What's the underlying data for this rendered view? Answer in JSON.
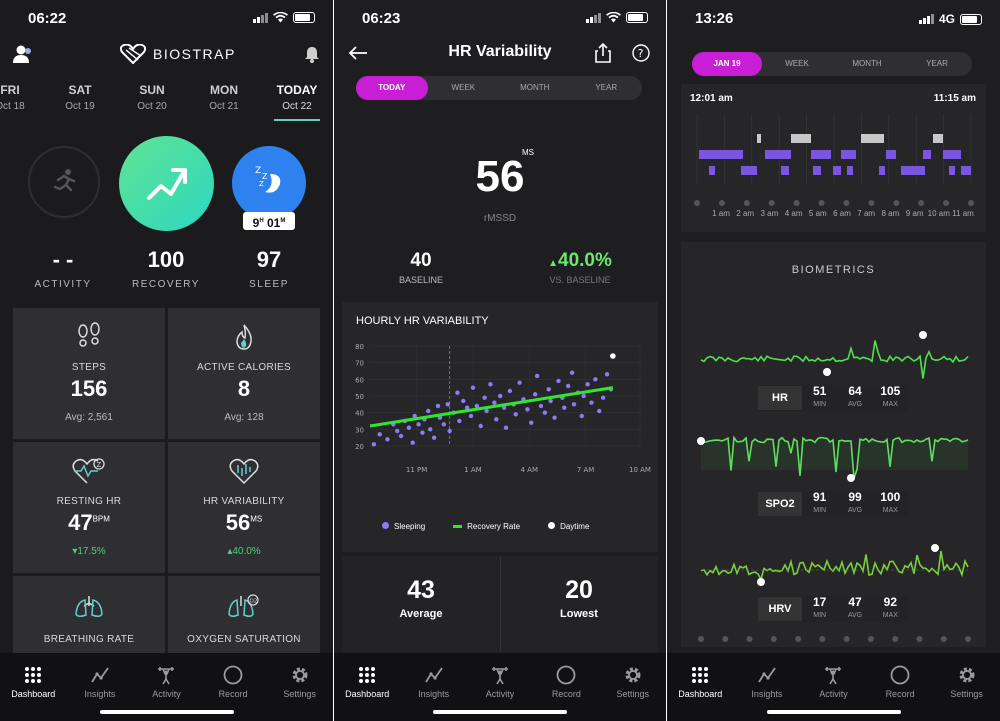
{
  "phone1": {
    "status_time": "06:22",
    "brand": "BIOSTRAP",
    "days": [
      {
        "day": "FRI",
        "date": "Oct 18"
      },
      {
        "day": "SAT",
        "date": "Oct 19"
      },
      {
        "day": "SUN",
        "date": "Oct 20"
      },
      {
        "day": "MON",
        "date": "Oct 21"
      },
      {
        "day": "TODAY",
        "date": "Oct 22"
      }
    ],
    "sleep_duration": {
      "h": "9",
      "h_unit": "H",
      "m": "01",
      "m_unit": "M"
    },
    "summary": [
      {
        "value": "- -",
        "label": "ACTIVITY"
      },
      {
        "value": "100",
        "label": "RECOVERY"
      },
      {
        "value": "97",
        "label": "SLEEP"
      }
    ],
    "tiles": [
      {
        "label": "STEPS",
        "value": "156",
        "sub": "Avg: 2,561"
      },
      {
        "label": "ACTIVE CALORIES",
        "value": "8",
        "sub": "Avg: 128"
      },
      {
        "label": "RESTING HR",
        "value": "47",
        "unit": "BPM",
        "sub": "▾17.5%"
      },
      {
        "label": "HR VARIABILITY",
        "value": "56",
        "unit": "MS",
        "sub": "▴40.0%"
      },
      {
        "label": "BREATHING RATE"
      },
      {
        "label": "OXYGEN SATURATION"
      }
    ],
    "colors": {
      "green": "#4ad27a",
      "teal": "#2fd6b5",
      "blue": "#2e82f0"
    }
  },
  "phone2": {
    "status_time": "06:23",
    "title": "HR Variability",
    "segments": [
      "TODAY",
      "WEEK",
      "MONTH",
      "YEAR"
    ],
    "metric_value": "56",
    "metric_unit": "MS",
    "metric_label": "rMSSD",
    "baseline_value": "40",
    "baseline_label": "BASELINE",
    "vs_value": "40.0%",
    "vs_label": "VS. BASELINE",
    "chart_title": "HOURLY HR VARIABILITY",
    "legend": [
      "Sleeping",
      "Recovery Rate",
      "Daytime"
    ],
    "average_value": "43",
    "average_label": "Average",
    "lowest_value": "20",
    "lowest_label": "Lowest"
  },
  "phone3": {
    "status_time": "13:26",
    "network": "4G",
    "segments": [
      "JAN 19",
      "WEEK",
      "MONTH",
      "YEAR"
    ],
    "time_start": "12:01 am",
    "time_end": "11:15 am",
    "hour_labels": [
      "1 am",
      "2 am",
      "3 am",
      "4 am",
      "5 am",
      "6 am",
      "7 am",
      "8 am",
      "9 am",
      "10 am",
      "11 am"
    ],
    "biometrics_title": "BIOMETRICS",
    "metrics": [
      {
        "name": "HR",
        "min": "51",
        "avg": "64",
        "max": "105"
      },
      {
        "name": "SPO2",
        "min": "91",
        "avg": "99",
        "max": "100"
      },
      {
        "name": "HRV",
        "min": "17",
        "avg": "47",
        "max": "92"
      }
    ],
    "stat_labels": {
      "min": "MIN",
      "avg": "AVG",
      "max": "MAX"
    }
  },
  "tabs": [
    "Dashboard",
    "Insights",
    "Activity",
    "Record",
    "Settings"
  ],
  "chart_data": {
    "type": "scatter",
    "title": "HOURLY HR VARIABILITY",
    "xlabel": "",
    "ylabel": "",
    "x_ticks": [
      "11 PM",
      "1 AM",
      "4 AM",
      "7 AM",
      "10 AM"
    ],
    "ylim": [
      20,
      80
    ],
    "y_ticks": [
      20,
      30,
      40,
      50,
      60,
      70,
      80
    ],
    "grid": true,
    "legend_position": "bottom",
    "series": [
      {
        "name": "Sleeping",
        "type": "scatter",
        "color": "#8b7cf6",
        "x": [
          0.2,
          0.5,
          0.9,
          1.2,
          1.4,
          1.6,
          1.8,
          2.0,
          2.2,
          2.3,
          2.5,
          2.7,
          2.8,
          3.0,
          3.1,
          3.3,
          3.5,
          3.6,
          3.8,
          4.0,
          4.1,
          4.3,
          4.5,
          4.6,
          4.8,
          5.0,
          5.2,
          5.3,
          5.5,
          5.7,
          5.9,
          6.0,
          6.2,
          6.4,
          6.5,
          6.7,
          6.9,
          7.0,
          7.2,
          7.4,
          7.5,
          7.7,
          7.9,
          8.1,
          8.3,
          8.5,
          8.6,
          8.8,
          9.0,
          9.2,
          9.3,
          9.5,
          9.7,
          9.9,
          10.0,
          10.2,
          10.4,
          10.5,
          10.7,
          10.9,
          11.0,
          11.2,
          11.4,
          11.6,
          11.8,
          12.0,
          12.2,
          12.4
        ],
        "y": [
          21,
          27,
          24,
          33,
          29,
          26,
          35,
          31,
          22,
          38,
          33,
          28,
          36,
          41,
          30,
          25,
          44,
          37,
          33,
          45,
          29,
          40,
          52,
          35,
          47,
          43,
          38,
          55,
          44,
          32,
          49,
          41,
          57,
          46,
          36,
          50,
          43,
          31,
          53,
          45,
          39,
          58,
          48,
          42,
          34,
          51,
          62,
          44,
          40,
          54,
          47,
          37,
          59,
          49,
          43,
          56,
          64,
          45,
          52,
          38,
          50,
          57,
          46,
          60,
          41,
          49,
          63,
          54
        ],
        "sizes_note": ""
      },
      {
        "name": "Recovery Rate",
        "type": "line",
        "color": "#2ee82e",
        "x": [
          0,
          12.5
        ],
        "y": [
          32,
          55
        ]
      },
      {
        "name": "Daytime",
        "type": "scatter",
        "color": "#ffffff",
        "x": [
          12.5
        ],
        "y": [
          74
        ]
      }
    ]
  }
}
